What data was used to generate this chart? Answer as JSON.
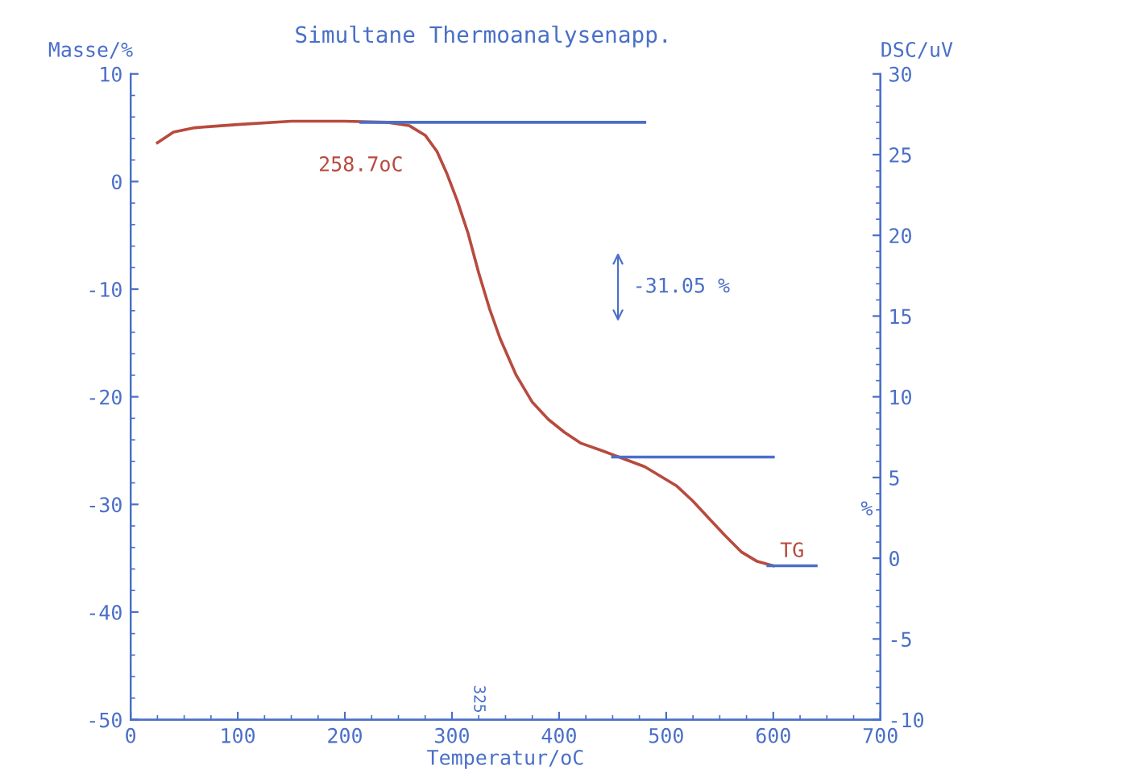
{
  "chart_data": {
    "type": "line",
    "title": "Simultane Thermoanalysenapp.",
    "xlabel": "Temperatur/oC",
    "ylabel": "Masse/%",
    "y2label": "DSC/uV",
    "xlim": [
      0,
      700
    ],
    "xticks": [
      0,
      100,
      200,
      300,
      400,
      500,
      600,
      700
    ],
    "ylim": [
      -50,
      10
    ],
    "yticks": [
      -50,
      -40,
      -30,
      -20,
      -10,
      0,
      10
    ],
    "y2lim": [
      -10,
      30
    ],
    "y2ticks": [
      -10,
      -5,
      0,
      5,
      10,
      15,
      20,
      25,
      30
    ],
    "grid": false,
    "legend": false,
    "marker": "none",
    "line_style": "solid",
    "series": [
      {
        "color": "#b84a3e",
        "x": [
          25,
          40,
          60,
          100,
          150,
          200,
          240,
          260,
          275,
          286,
          295,
          305,
          315,
          325,
          335,
          345,
          360,
          375,
          390,
          405,
          420,
          440,
          456,
          480,
          510,
          525,
          540,
          555,
          570,
          585,
          600
        ],
        "values": [
          3.6,
          4.6,
          5.0,
          5.3,
          5.6,
          5.6,
          5.5,
          5.2,
          4.3,
          2.8,
          0.8,
          -1.8,
          -4.8,
          -8.5,
          -11.8,
          -14.6,
          -18.0,
          -20.5,
          -22.1,
          -23.3,
          -24.3,
          -25.0,
          -25.6,
          -26.5,
          -28.3,
          -29.7,
          -31.3,
          -32.9,
          -34.4,
          -35.3,
          -35.7
        ]
      },
      {
        "color": "#4a6fc8",
        "x": [
          215,
          480
        ],
        "values": [
          5.5,
          5.5
        ]
      },
      {
        "color": "#4a6fc8",
        "x": [
          450,
          600
        ],
        "values": [
          -25.6,
          -25.6
        ]
      },
      {
        "color": "#4a6fc8",
        "x": [
          595,
          640
        ],
        "values": [
          -35.7,
          -35.7
        ]
      }
    ],
    "annotations": [
      "258.7oC",
      "-31.05 %",
      {
        "text": "TG",
        "x": 600,
        "y": -35.7
      },
      "325",
      "%"
    ]
  }
}
